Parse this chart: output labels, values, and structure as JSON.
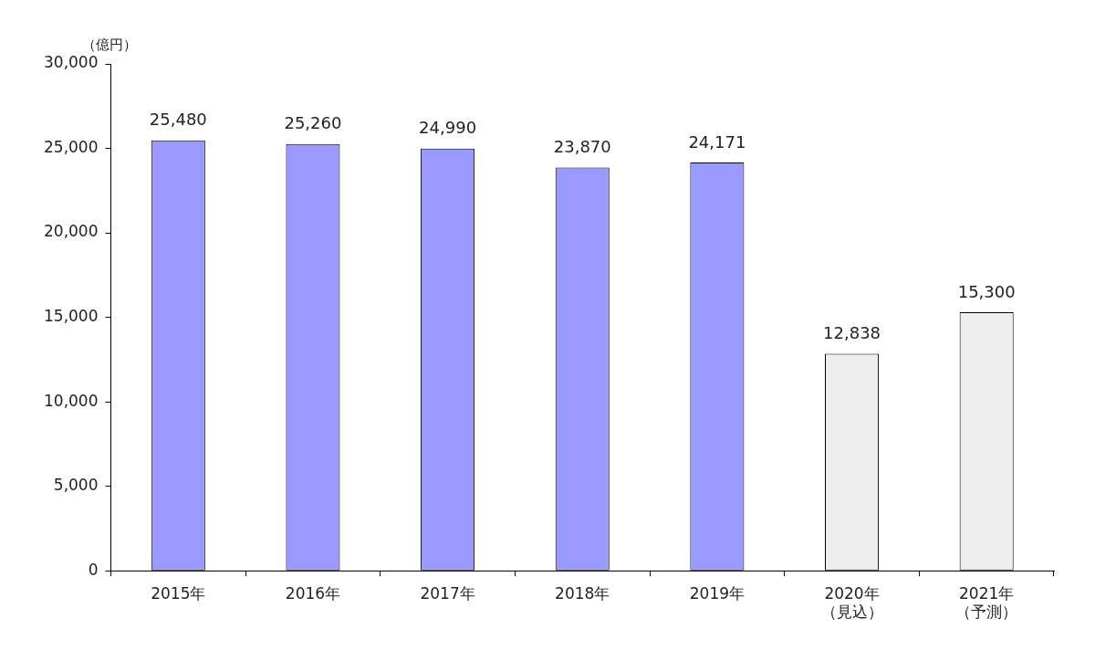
{
  "chart_data": {
    "type": "bar",
    "ylabel": "（億円）",
    "categories": [
      "2015年",
      "2016年",
      "2017年",
      "2018年",
      "2019年",
      "2020年（見込）",
      "2021年（予測）"
    ],
    "values": [
      25480,
      25260,
      24990,
      23870,
      24171,
      12838,
      15300
    ],
    "value_labels": [
      "25,480",
      "25,260",
      "24,990",
      "23,870",
      "24,171",
      "12,838",
      "15,300"
    ],
    "colors": [
      "#9999ff",
      "#9999ff",
      "#9999ff",
      "#9999ff",
      "#9999ff",
      "#eeeeee",
      "#eeeeee"
    ],
    "ylim": [
      0,
      30000
    ],
    "yticks": [
      0,
      {
        "value": 5000,
        "label": "5,000"
      },
      {
        "value": 10000,
        "label": "10,000"
      },
      {
        "value": 15000,
        "label": "15,000"
      },
      {
        "value": 20000,
        "label": "20,000"
      },
      {
        "value": 25000,
        "label": "25,000"
      },
      {
        "value": 30000,
        "label": "30,000"
      }
    ],
    "grid": false,
    "legend": false
  }
}
